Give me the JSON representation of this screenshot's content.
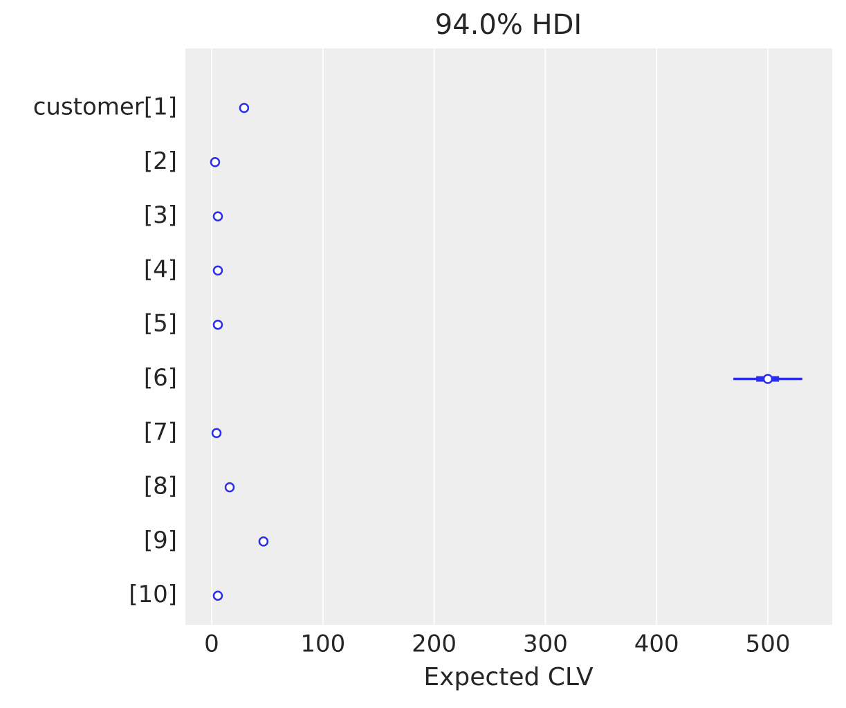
{
  "chart_data": {
    "type": "forest",
    "title": "94.0% HDI",
    "x_label": "Expected CLV",
    "categories": [
      "customer[1]",
      "[2]",
      "[3]",
      "[4]",
      "[5]",
      "[6]",
      "[7]",
      "[8]",
      "[9]",
      "[10]"
    ],
    "series": [
      {
        "color": "#2a2eec",
        "values": [
          29.2,
          3.1,
          5.6,
          5.6,
          5.6,
          500,
          4.4,
          16.2,
          46.6,
          5.6
        ],
        "hdi_low": [
          27.5,
          2.4,
          4.8,
          4.8,
          4.8,
          469,
          3.6,
          14.8,
          44.5,
          4.8
        ],
        "hdi_high": [
          31,
          3.9,
          6.4,
          6.4,
          6.4,
          531,
          5.2,
          17.6,
          48.8,
          6.4
        ],
        "iqr_low": [
          28.6,
          2.9,
          5.3,
          5.3,
          5.3,
          489.5,
          4.1,
          15.7,
          45.9,
          5.3
        ],
        "iqr_high": [
          29.8,
          3.4,
          5.9,
          5.9,
          5.9,
          510,
          4.7,
          16.7,
          47.3,
          5.9
        ]
      }
    ],
    "xlim": [
      -23.6,
      557.8
    ],
    "xticks": [
      0,
      100,
      200,
      300,
      400,
      500
    ],
    "grid": true
  }
}
